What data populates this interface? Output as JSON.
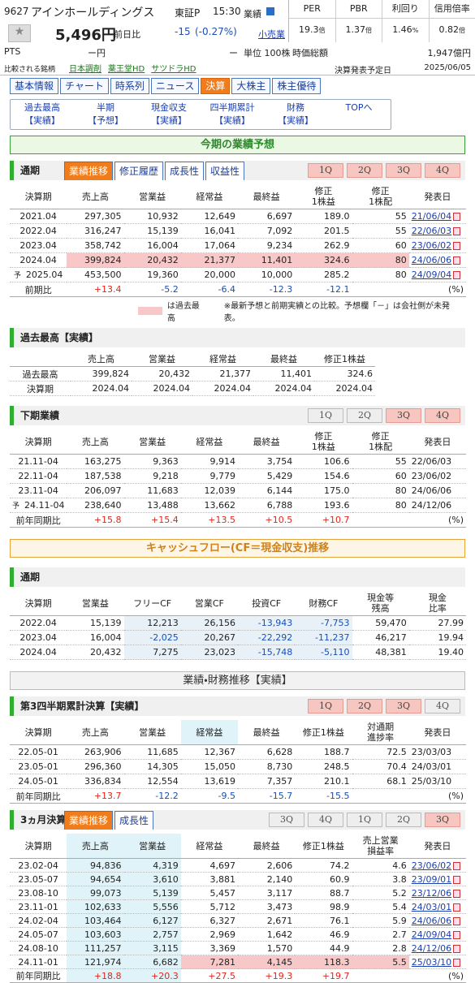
{
  "header": {
    "code": "9627",
    "name": "アインホールディングス",
    "market": "東証P",
    "time": "15:30",
    "gyoseki": "業績",
    "sector": "小売業",
    "price": "5,496円",
    "change_label": "前日比",
    "change": "-15",
    "change_pct": "(-0.27%)",
    "pts_label": "PTS",
    "pts_price": "ー円",
    "pts_change": "ー",
    "unit": "単位 100株",
    "metrics": [
      {
        "label": "PER",
        "value": "19.3",
        "unit": "倍"
      },
      {
        "label": "PBR",
        "value": "1.37",
        "unit": "倍"
      },
      {
        "label": "利回り",
        "value": "1.46",
        "unit": "%"
      },
      {
        "label": "信用倍率",
        "value": "0.82",
        "unit": "倍"
      }
    ],
    "market_cap_label": "時価総額",
    "market_cap": "1,947億円",
    "peers_label": "比較される銘柄",
    "peers": [
      "日本調剤",
      "薬王堂HD",
      "サツドラHD"
    ],
    "earnings_date_label": "決算発表予定日",
    "earnings_date": "2025/06/05"
  },
  "tabs": [
    "基本情報",
    "チャート",
    "時系列",
    "ニュース",
    "決算",
    "大株主",
    "株主優待"
  ],
  "subnav": [
    {
      "label": "過去最高",
      "sub": "【実績】"
    },
    {
      "label": "半期",
      "sub": "【予想】"
    },
    {
      "label": "現金収支",
      "sub": "【実績】"
    },
    {
      "label": "四半期累計",
      "sub": "【実績】"
    },
    {
      "label": "財務",
      "sub": "【実績】"
    },
    {
      "label": "TOPへ"
    }
  ],
  "forecast": {
    "heading": "今期の業績予想",
    "title": "通期",
    "tabs": [
      "業績推移",
      "修正履歴",
      "成長性",
      "収益性"
    ],
    "quarters": [
      {
        "label": "1Q",
        "active": true
      },
      {
        "label": "2Q",
        "active": true
      },
      {
        "label": "3Q",
        "active": true
      },
      {
        "label": "4Q",
        "active": true
      }
    ],
    "date_links": true,
    "columns": [
      "決算期",
      "売上高",
      "営業益",
      "経常益",
      "最終益",
      "修正\n1株益",
      "修正\n1株配",
      "発表日"
    ],
    "rows": [
      {
        "cells": [
          "2021.04",
          "297,305",
          "10,932",
          "12,649",
          "6,697",
          "189.0",
          "55",
          "21/06/04"
        ]
      },
      {
        "cells": [
          "2022.04",
          "316,247",
          "15,139",
          "16,041",
          "7,092",
          "201.5",
          "55",
          "22/06/03"
        ]
      },
      {
        "cells": [
          "2023.04",
          "358,742",
          "16,004",
          "17,064",
          "9,234",
          "262.9",
          "60",
          "23/06/02"
        ]
      },
      {
        "cells": [
          "2024.04",
          "399,824",
          "20,432",
          "21,377",
          "11,401",
          "324.6",
          "80",
          "24/06/06"
        ],
        "record": true
      },
      {
        "cells": [
          "2025.04",
          "453,500",
          "19,360",
          "20,000",
          "10,000",
          "285.2",
          "80",
          "24/09/04"
        ],
        "mark": "予"
      }
    ],
    "footer": {
      "cells": [
        "前期比",
        "+13.4",
        "-5.2",
        "-6.4",
        "-12.3",
        "-12.1"
      ],
      "unit": "(%)"
    },
    "legend": "は過去最高",
    "note": "※最新予想と前期実績との比較。予想欄「－」は会社側が未発表。"
  },
  "record": {
    "title": "過去最高【実績】",
    "columns": [
      "売上高",
      "営業益",
      "経常益",
      "最終益",
      "修正1株益"
    ],
    "rows": [
      {
        "cells": [
          "過去最高",
          "399,824",
          "20,432",
          "21,377",
          "11,401",
          "324.6"
        ]
      },
      {
        "cells": [
          "決算期",
          "2024.04",
          "2024.04",
          "2024.04",
          "2024.04",
          "2024.04"
        ]
      }
    ]
  },
  "second_half": {
    "title": "下期業績",
    "quarters": [
      {
        "label": "1Q",
        "active": false
      },
      {
        "label": "2Q",
        "active": false
      },
      {
        "label": "3Q",
        "active": true
      },
      {
        "label": "4Q",
        "active": true
      }
    ],
    "columns": [
      "決算期",
      "売上高",
      "営業益",
      "経常益",
      "最終益",
      "修正\n1株益",
      "修正\n1株配",
      "発表日"
    ],
    "rows": [
      {
        "cells": [
          "21.11-04",
          "163,275",
          "9,363",
          "9,914",
          "3,754",
          "106.6",
          "55",
          "22/06/03"
        ]
      },
      {
        "cells": [
          "22.11-04",
          "187,538",
          "9,218",
          "9,779",
          "5,429",
          "154.6",
          "60",
          "23/06/02"
        ]
      },
      {
        "cells": [
          "23.11-04",
          "206,097",
          "11,683",
          "12,039",
          "6,144",
          "175.0",
          "80",
          "24/06/06"
        ]
      },
      {
        "cells": [
          "24.11-04",
          "238,640",
          "13,488",
          "13,662",
          "6,788",
          "193.6",
          "80",
          "24/12/06"
        ],
        "mark": "予"
      }
    ],
    "footer": {
      "cells": [
        "前年同期比",
        "+15.8",
        "+15.4",
        "+13.5",
        "+10.5",
        "+10.7"
      ],
      "unit": "(%)"
    }
  },
  "cashflow": {
    "heading": "キャッシュフロー(CF＝現金収支)推移",
    "title": "通期",
    "columns": [
      "決算期",
      "営業益",
      "フリーCF",
      "営業CF",
      "投資CF",
      "財務CF",
      "現金等\n残高",
      "現金\n比率"
    ],
    "rows": [
      {
        "cells": [
          "2022.04",
          "15,139",
          "12,213",
          "26,156",
          "-13,943",
          "-7,753",
          "59,470",
          "27.99"
        ]
      },
      {
        "cells": [
          "2023.04",
          "16,004",
          "-2,025",
          "20,267",
          "-22,292",
          "-11,237",
          "46,217",
          "19.94"
        ]
      },
      {
        "cells": [
          "2024.04",
          "20,432",
          "7,275",
          "23,023",
          "-15,748",
          "-5,110",
          "48,381",
          "19.40"
        ]
      }
    ]
  },
  "q3_cumulative": {
    "heading": "業績・財務推移【実績】",
    "title": "第3四半期累計決算【実績】",
    "quarters": [
      {
        "label": "1Q",
        "active": true
      },
      {
        "label": "2Q",
        "active": true
      },
      {
        "label": "3Q",
        "active": true
      },
      {
        "label": "4Q",
        "active": false
      }
    ],
    "columns": [
      "決算期",
      "売上高",
      "営業益",
      "経常益",
      "最終益",
      "修正1株益",
      "対通期\n進捗率",
      "発表日"
    ],
    "rows": [
      {
        "cells": [
          "22.05-01",
          "263,906",
          "11,685",
          "12,367",
          "6,628",
          "188.7",
          "72.5",
          "23/03/03"
        ]
      },
      {
        "cells": [
          "23.05-01",
          "296,360",
          "14,305",
          "15,050",
          "8,730",
          "248.5",
          "70.4",
          "24/03/01"
        ]
      },
      {
        "cells": [
          "24.05-01",
          "336,834",
          "12,554",
          "13,619",
          "7,357",
          "210.1",
          "68.1",
          "25/03/10"
        ]
      }
    ],
    "footer": {
      "cells": [
        "前年同期比",
        "+13.7",
        "-12.2",
        "-9.5",
        "-15.7",
        "-15.5"
      ],
      "unit": "(%)"
    }
  },
  "quarterly": {
    "title": "3ヵ月決算【実績】",
    "tabs": [
      "業績推移",
      "成長性"
    ],
    "quarters": [
      {
        "label": "3Q",
        "active": false
      },
      {
        "label": "4Q",
        "active": false
      },
      {
        "label": "1Q",
        "active": false
      },
      {
        "label": "2Q",
        "active": false
      },
      {
        "label": "3Q",
        "active": true
      }
    ],
    "date_links": true,
    "columns": [
      "決算期",
      "売上高",
      "営業益",
      "経常益",
      "最終益",
      "修正1株益",
      "売上営業\n損益率",
      "発表日"
    ],
    "rows": [
      {
        "cells": [
          "23.02-04",
          "94,836",
          "4,319",
          "4,697",
          "2,606",
          "74.2",
          "4.6",
          "23/06/02"
        ]
      },
      {
        "cells": [
          "23.05-07",
          "94,654",
          "3,610",
          "3,881",
          "2,140",
          "60.9",
          "3.8",
          "23/09/01"
        ]
      },
      {
        "cells": [
          "23.08-10",
          "99,073",
          "5,139",
          "5,457",
          "3,117",
          "88.7",
          "5.2",
          "23/12/06"
        ]
      },
      {
        "cells": [
          "23.11-01",
          "102,633",
          "5,556",
          "5,712",
          "3,473",
          "98.9",
          "5.4",
          "24/03/01"
        ]
      },
      {
        "cells": [
          "24.02-04",
          "103,464",
          "6,127",
          "6,327",
          "2,671",
          "76.1",
          "5.9",
          "24/06/06"
        ]
      },
      {
        "cells": [
          "24.05-07",
          "103,603",
          "2,757",
          "2,969",
          "1,642",
          "46.9",
          "2.7",
          "24/09/04"
        ]
      },
      {
        "cells": [
          "24.08-10",
          "111,257",
          "3,115",
          "3,369",
          "1,570",
          "44.9",
          "2.8",
          "24/12/06"
        ]
      },
      {
        "cells": [
          "24.11-01",
          "121,974",
          "6,682",
          "7,281",
          "4,145",
          "118.3",
          "5.5",
          "25/03/10"
        ],
        "record": true
      }
    ],
    "footer": {
      "cells": [
        "前年同期比",
        "+18.8",
        "+20.3",
        "+27.5",
        "+19.3",
        "+19.7"
      ],
      "unit": "(%)"
    }
  }
}
